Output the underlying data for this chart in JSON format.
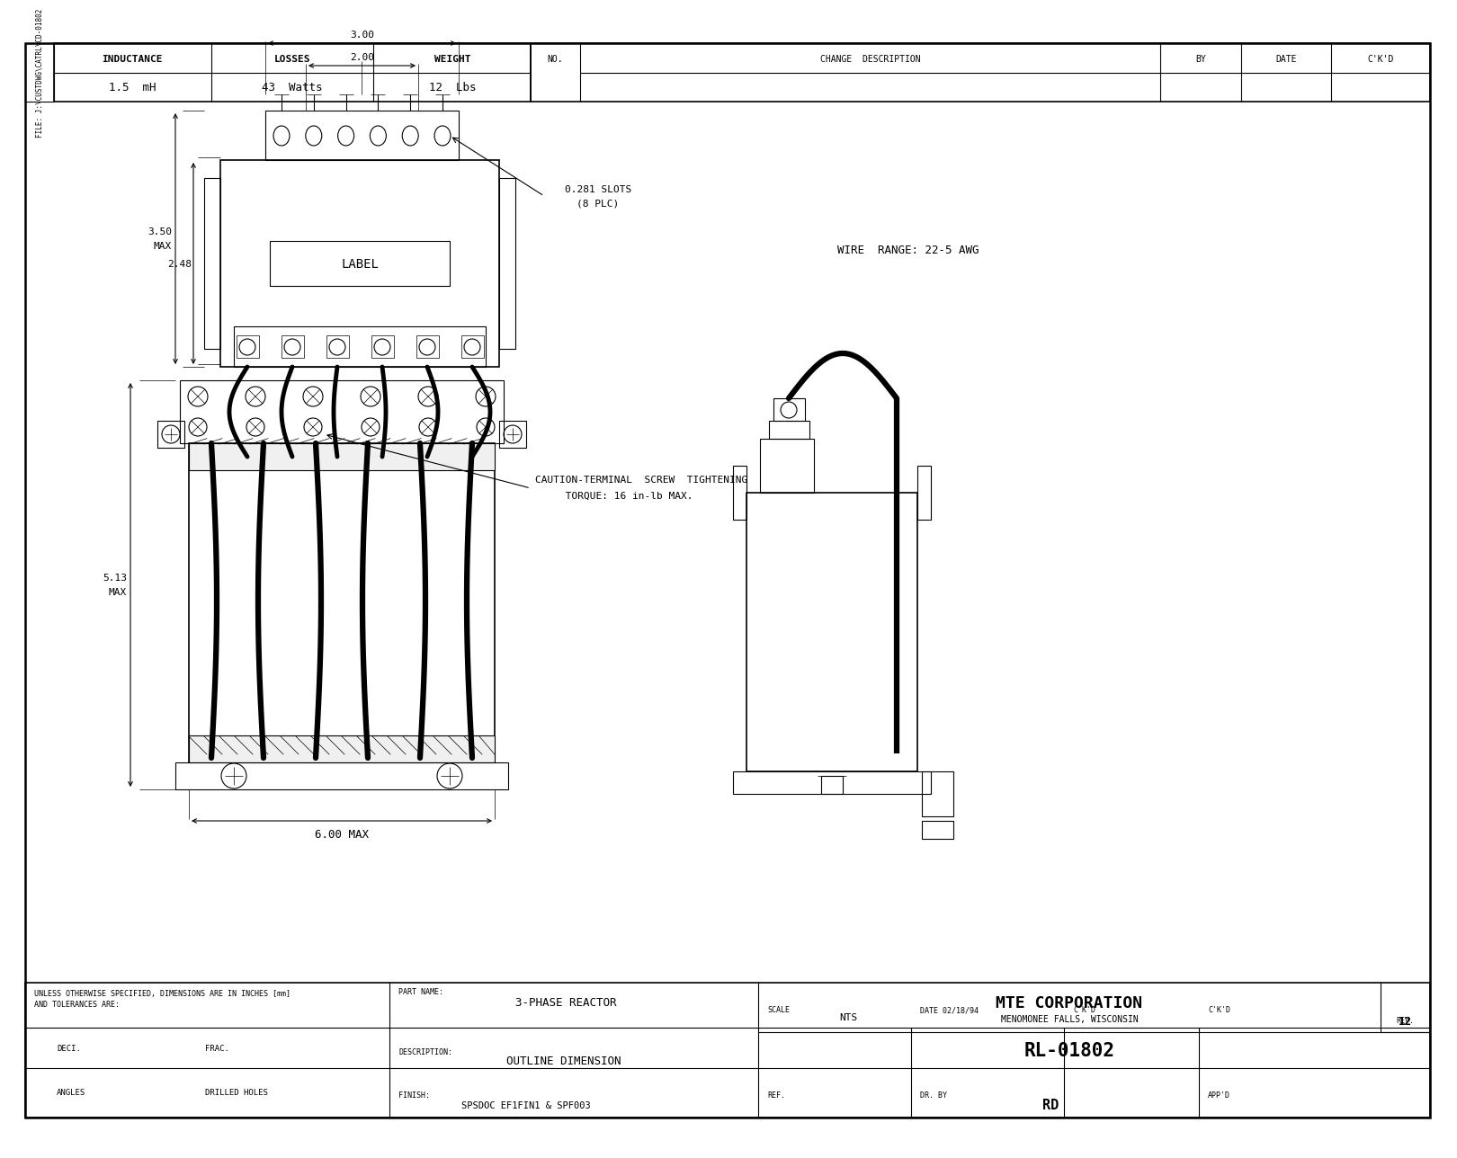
{
  "bg_color": "#FFFFFF",
  "line_color": "#000000",
  "header": {
    "inductance_label": "INDUCTANCE",
    "inductance_value": "1.5  mH",
    "losses_label": "LOSSES",
    "losses_value": "43  Watts",
    "weight_label": "WEIGHT",
    "weight_value": "12  Lbs",
    "no": "NO.",
    "change_desc": "CHANGE  DESCRIPTION",
    "by": "BY",
    "date": "DATE",
    "ckd": "C'K'D"
  },
  "annotations": {
    "dim_300": "3.00",
    "dim_200": "2.00",
    "slots_line1": "0.281 SLOTS",
    "slots_line2": "(8 PLC)",
    "dim_350": "3.50",
    "dim_max1": "MAX",
    "dim_248": "2.48",
    "label_box": "LABEL",
    "wire_range": "WIRE  RANGE: 22-5 AWG",
    "caution_line1": "CAUTION-TERMINAL  SCREW  TIGHTENING",
    "caution_line2": "     TORQUE: 16 in-lb MAX.",
    "dim_513": "5.13",
    "dim_max2": "MAX",
    "dim_600": "6.00 MAX"
  },
  "title_block": {
    "unless_text": "UNLESS OTHERWISE SPECIFIED, DIMENSIONS ARE IN INCHES [mm]",
    "tolerances_text": "AND TOLERANCES ARE:",
    "deci_label": "DECI.",
    "frac_label": "FRAC.",
    "angles_label": "ANGLES",
    "drilled_label": "DRILLED HOLES",
    "part_name_label": "PART NAME:",
    "part_name_value": "3-PHASE REACTOR",
    "description_label": "DESCRIPTION:",
    "description_value": "OUTLINE DIMENSION",
    "finish_label": "FINISH:",
    "finish_value": "SPSDOC EF1FIN1 & SPF003",
    "company": "MTE CORPORATION",
    "city": "MENOMONEE FALLS, WISCONSIN",
    "part_number": "RL-01802",
    "rev_label": "REV.",
    "rev_value": "12",
    "scale_label": "SCALE",
    "scale_value": "NTS",
    "date_val": "DATE 02/18/94",
    "ckd_label": "C'K'D",
    "ref_label": "REF.",
    "drby_label": "DR. BY",
    "drby_value": "RD",
    "appd_label": "APP'D"
  },
  "file_text": "FILE: J:\\CUSTDWG\\CATRL\\CD-01802"
}
